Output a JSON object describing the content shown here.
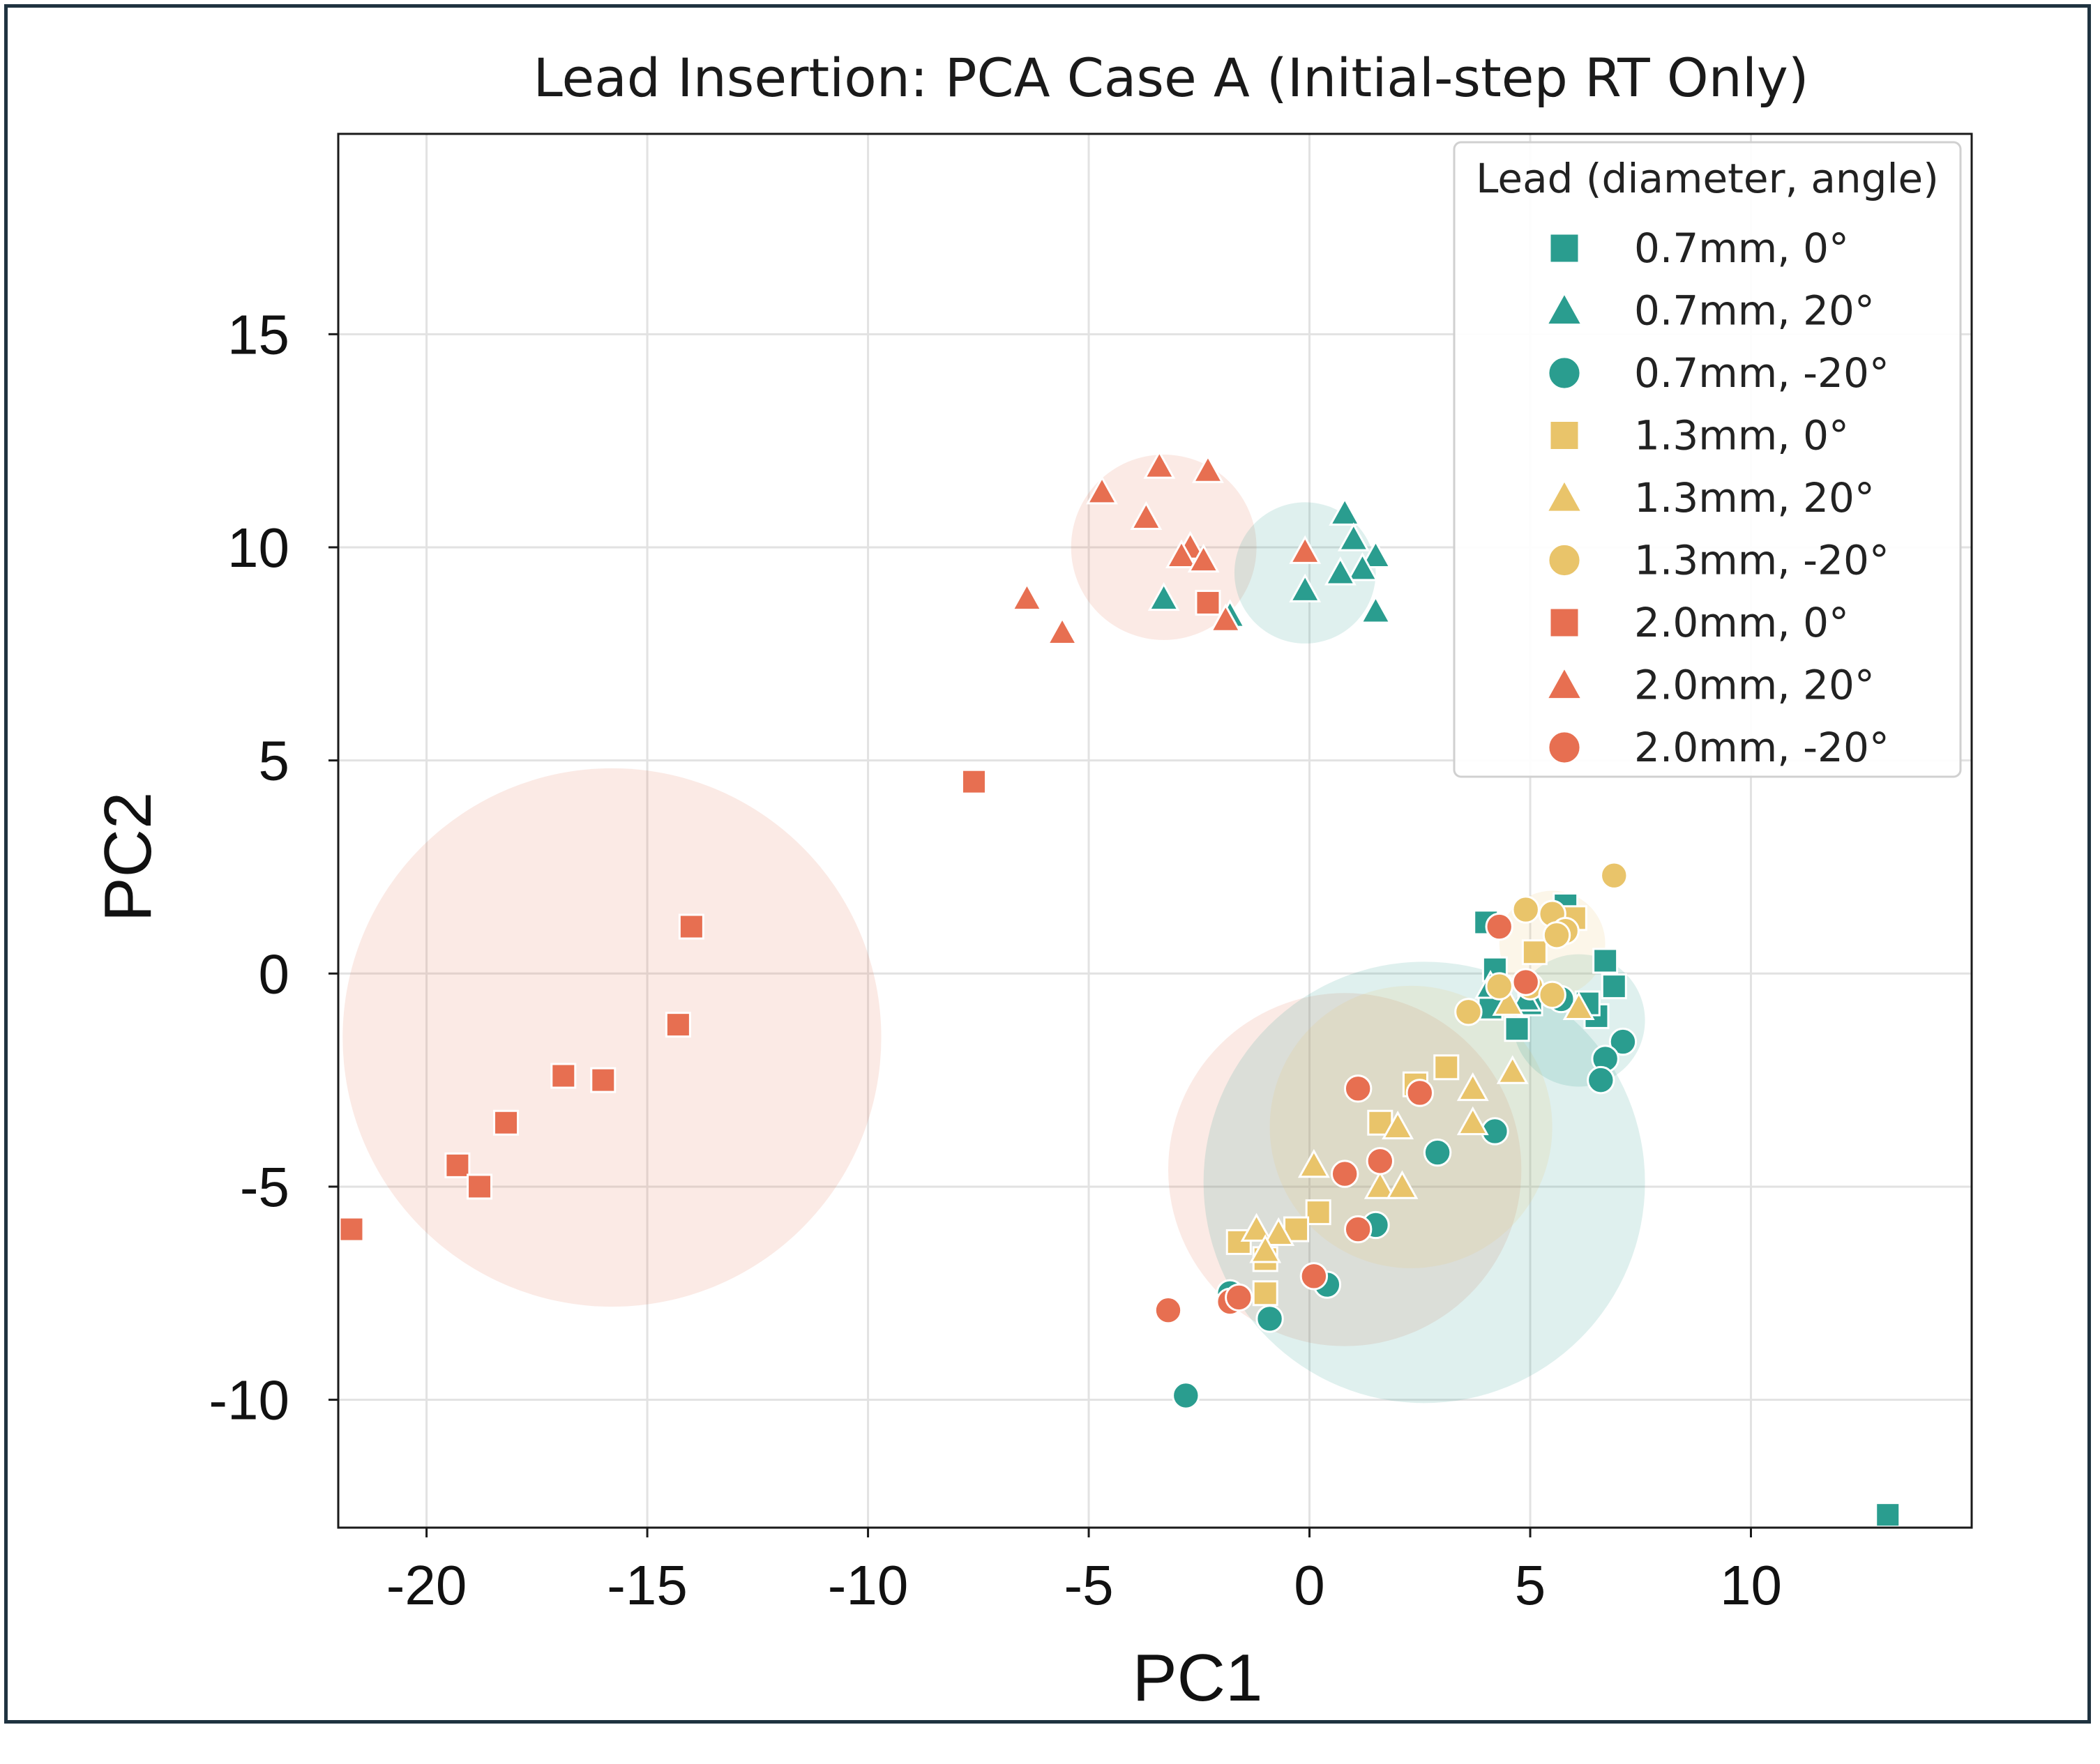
{
  "chart_data": {
    "type": "scatter",
    "title": "Lead Insertion: PCA Case A (Initial-step RT Only)",
    "xlabel": "PC1",
    "ylabel": "PC2",
    "xlim": [
      -22,
      15
    ],
    "ylim": [
      -13,
      19.7
    ],
    "xticks": [
      -20,
      -15,
      -10,
      -5,
      0,
      5,
      10
    ],
    "yticks": [
      -10,
      -5,
      0,
      5,
      10,
      15
    ],
    "xtick_labels": [
      "-20",
      "-15",
      "-10",
      "-5",
      "0",
      "5",
      "10"
    ],
    "ytick_labels": [
      "-10",
      "-5",
      "0",
      "5",
      "10",
      "15"
    ],
    "grid": true,
    "legend": {
      "title": "Lead (diameter, angle)",
      "placement": "top-right"
    },
    "colors": {
      "teal": "#2a9d8f",
      "yellow": "#e9c46a",
      "orange": "#e76f51"
    },
    "series": [
      {
        "name": "0.7mm, 0°",
        "color": "#2a9d8f",
        "marker": "square",
        "points": [
          [
            4.0,
            1.2
          ],
          [
            4.2,
            0.1
          ],
          [
            4.1,
            -0.8
          ],
          [
            4.7,
            -1.3
          ],
          [
            5.0,
            -0.7
          ],
          [
            5.8,
            1.6
          ],
          [
            6.7,
            0.3
          ],
          [
            6.9,
            -0.3
          ],
          [
            6.5,
            -1.0
          ],
          [
            6.3,
            -0.7
          ],
          [
            13.1,
            -12.7
          ]
        ]
      },
      {
        "name": "0.7mm, 20°",
        "color": "#2a9d8f",
        "marker": "triangle",
        "points": [
          [
            0.8,
            10.8
          ],
          [
            1.0,
            10.2
          ],
          [
            1.5,
            9.8
          ],
          [
            1.2,
            9.5
          ],
          [
            0.7,
            9.4
          ],
          [
            -0.1,
            9.0
          ],
          [
            1.5,
            8.5
          ],
          [
            -3.3,
            8.8
          ],
          [
            -1.8,
            8.4
          ],
          [
            4.1,
            -0.3
          ],
          [
            4.9,
            -0.6
          ]
        ]
      },
      {
        "name": "0.7mm, -20°",
        "color": "#2a9d8f",
        "marker": "circle",
        "points": [
          [
            7.1,
            -1.6
          ],
          [
            6.7,
            -2.0
          ],
          [
            6.6,
            -2.5
          ],
          [
            4.2,
            -3.7
          ],
          [
            2.9,
            -4.2
          ],
          [
            1.5,
            -5.9
          ],
          [
            -1.8,
            -7.5
          ],
          [
            -0.9,
            -8.1
          ],
          [
            0.4,
            -7.3
          ],
          [
            -2.8,
            -9.9
          ],
          [
            5.7,
            -0.6
          ]
        ]
      },
      {
        "name": "1.3mm, 0°",
        "color": "#e9c46a",
        "marker": "square",
        "points": [
          [
            5.1,
            0.5
          ],
          [
            6.0,
            1.3
          ],
          [
            3.1,
            -2.2
          ],
          [
            2.4,
            -2.6
          ],
          [
            1.6,
            -3.5
          ],
          [
            0.2,
            -5.6
          ],
          [
            -0.3,
            -6.0
          ],
          [
            -1.6,
            -6.3
          ],
          [
            -1.0,
            -6.7
          ],
          [
            -1.0,
            -7.5
          ]
        ]
      },
      {
        "name": "1.3mm, 20°",
        "color": "#e9c46a",
        "marker": "triangle",
        "points": [
          [
            4.5,
            -0.7
          ],
          [
            6.1,
            -0.8
          ],
          [
            4.6,
            -2.3
          ],
          [
            3.7,
            -2.7
          ],
          [
            3.7,
            -3.5
          ],
          [
            2.0,
            -3.6
          ],
          [
            0.1,
            -4.5
          ],
          [
            1.6,
            -5.0
          ],
          [
            2.1,
            -5.0
          ],
          [
            -1.2,
            -6.0
          ],
          [
            -0.7,
            -6.1
          ],
          [
            -1.0,
            -6.5
          ]
        ]
      },
      {
        "name": "1.3mm, -20°",
        "color": "#e9c46a",
        "marker": "circle",
        "points": [
          [
            6.9,
            2.3
          ],
          [
            4.9,
            1.5
          ],
          [
            5.5,
            1.4
          ],
          [
            5.8,
            1.0
          ],
          [
            5.6,
            0.9
          ],
          [
            4.3,
            -0.3
          ],
          [
            5.0,
            -0.3
          ],
          [
            5.5,
            -0.5
          ],
          [
            3.6,
            -0.9
          ]
        ]
      },
      {
        "name": "2.0mm, 0°",
        "color": "#e76f51",
        "marker": "square",
        "points": [
          [
            -21.7,
            -6.0
          ],
          [
            -19.3,
            -4.5
          ],
          [
            -18.8,
            -5.0
          ],
          [
            -18.2,
            -3.5
          ],
          [
            -16.9,
            -2.4
          ],
          [
            -16.0,
            -2.5
          ],
          [
            -14.3,
            -1.2
          ],
          [
            -14.0,
            1.1
          ],
          [
            -7.6,
            4.5
          ],
          [
            -2.3,
            8.7
          ]
        ]
      },
      {
        "name": "2.0mm, 20°",
        "color": "#e76f51",
        "marker": "triangle",
        "points": [
          [
            -3.4,
            11.9
          ],
          [
            -2.3,
            11.8
          ],
          [
            -4.7,
            11.3
          ],
          [
            -3.7,
            10.7
          ],
          [
            -2.7,
            10.0
          ],
          [
            -2.9,
            9.8
          ],
          [
            -2.4,
            9.7
          ],
          [
            -6.4,
            8.8
          ],
          [
            -5.6,
            8.0
          ],
          [
            -1.9,
            8.3
          ],
          [
            -0.1,
            9.9
          ]
        ]
      },
      {
        "name": "2.0mm, -20°",
        "color": "#e76f51",
        "marker": "circle",
        "points": [
          [
            4.3,
            1.1
          ],
          [
            4.9,
            -0.2
          ],
          [
            1.1,
            -2.7
          ],
          [
            2.5,
            -2.8
          ],
          [
            1.6,
            -4.4
          ],
          [
            0.8,
            -4.7
          ],
          [
            1.1,
            -6.0
          ],
          [
            0.1,
            -7.1
          ],
          [
            -1.8,
            -7.7
          ],
          [
            -1.6,
            -7.6
          ],
          [
            -3.2,
            -7.9
          ]
        ]
      }
    ],
    "confidence_circles": [
      {
        "group": "2.0mm, 0°",
        "color": "#e76f51",
        "cx": -15.8,
        "cy": -1.5,
        "r": 6.1
      },
      {
        "group": "2.0mm, 20°",
        "color": "#e76f51",
        "cx": -3.3,
        "cy": 10.0,
        "r": 2.1
      },
      {
        "group": "0.7mm, 20°",
        "color": "#2a9d8f",
        "cx": -0.1,
        "cy": 9.4,
        "r": 1.6
      },
      {
        "group": "2.0mm, -20°",
        "color": "#e76f51",
        "cx": 0.8,
        "cy": -4.6,
        "r": 4.0
      },
      {
        "group": "0.7mm, -20°",
        "color": "#2a9d8f",
        "cx": 2.6,
        "cy": -4.9,
        "r": 5.0
      },
      {
        "group": "1.3mm, 20°",
        "color": "#e9c46a",
        "cx": 2.3,
        "cy": -3.6,
        "r": 3.2
      },
      {
        "group": "0.7mm, 0°",
        "color": "#2a9d8f",
        "cx": 6.1,
        "cy": -1.1,
        "r": 1.5
      },
      {
        "group": "1.3mm, -20°",
        "color": "#e9c46a",
        "cx": 5.5,
        "cy": 0.7,
        "r": 1.2
      }
    ]
  }
}
